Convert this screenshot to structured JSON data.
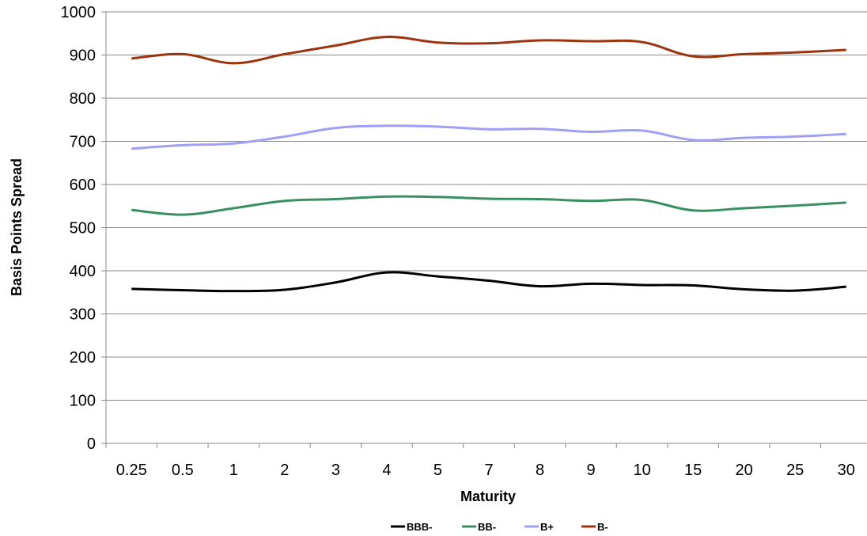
{
  "chart_data": {
    "type": "line",
    "xlabel": "Maturity",
    "ylabel": "Basis Points Spread",
    "ylim": [
      0,
      1000
    ],
    "yticks": [
      0,
      100,
      200,
      300,
      400,
      500,
      600,
      700,
      800,
      900,
      1000
    ],
    "grid": "horizontal",
    "legend_position": "bottom",
    "categories": [
      "0.25",
      "0.5",
      "1",
      "2",
      "3",
      "4",
      "5",
      "7",
      "8",
      "9",
      "10",
      "15",
      "20",
      "25",
      "30"
    ],
    "series": [
      {
        "name": "BBB-",
        "color": "#000000",
        "values": [
          358,
          355,
          353,
          356,
          373,
          396,
          387,
          377,
          364,
          370,
          367,
          366,
          357,
          354,
          363
        ]
      },
      {
        "name": "BB-",
        "color": "#3a8f61",
        "values": [
          541,
          530,
          545,
          562,
          566,
          572,
          571,
          567,
          566,
          562,
          564,
          540,
          545,
          551,
          558
        ]
      },
      {
        "name": "B+",
        "color": "#9f9ff5",
        "values": [
          683,
          691,
          695,
          711,
          731,
          736,
          734,
          728,
          729,
          722,
          725,
          703,
          708,
          711,
          717
        ]
      },
      {
        "name": "B-",
        "color": "#9c3410",
        "values": [
          892,
          902,
          881,
          902,
          922,
          942,
          929,
          927,
          934,
          932,
          930,
          897,
          902,
          906,
          912
        ]
      }
    ]
  }
}
